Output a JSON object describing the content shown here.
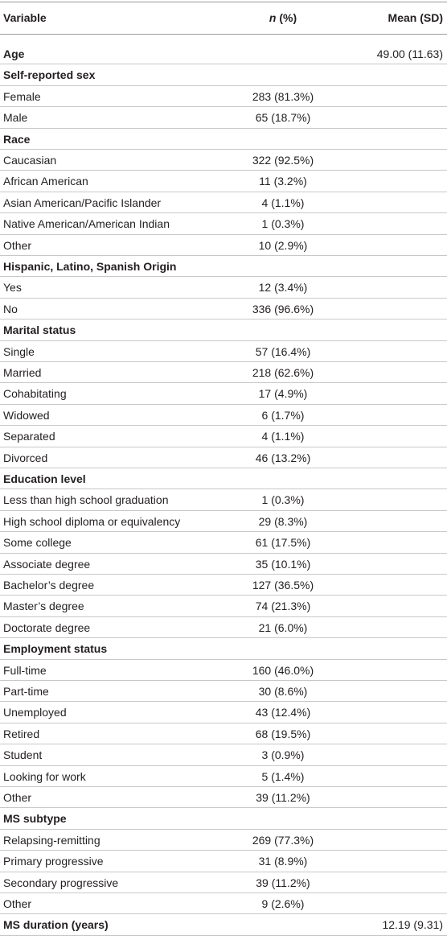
{
  "table": {
    "header": {
      "variable": "Variable",
      "n_italic": "n",
      "n_rest": " (%)",
      "mean": "Mean (SD)"
    },
    "rows": [
      {
        "label": "Age",
        "bold": true,
        "mean": "49.00 (11.63)"
      },
      {
        "label": "Self-reported sex",
        "bold": true
      },
      {
        "label": "Female",
        "n": "283 (81.3%)"
      },
      {
        "label": "Male",
        "n": "65 (18.7%)"
      },
      {
        "label": "Race",
        "bold": true
      },
      {
        "label": "Caucasian",
        "n": "322 (92.5%)"
      },
      {
        "label": "African American",
        "n": "11 (3.2%)"
      },
      {
        "label": "Asian American/Pacific Islander",
        "n": "4 (1.1%)"
      },
      {
        "label": "Native American/American Indian",
        "n": "1 (0.3%)"
      },
      {
        "label": "Other",
        "n": "10 (2.9%)"
      },
      {
        "label": "Hispanic, Latino, Spanish Origin",
        "bold": true
      },
      {
        "label": "Yes",
        "n": "12 (3.4%)"
      },
      {
        "label": "No",
        "n": "336 (96.6%)"
      },
      {
        "label": "Marital status",
        "bold": true
      },
      {
        "label": "Single",
        "n": "57 (16.4%)"
      },
      {
        "label": "Married",
        "n": "218 (62.6%)"
      },
      {
        "label": "Cohabitating",
        "n": "17 (4.9%)"
      },
      {
        "label": "Widowed",
        "n": "6 (1.7%)"
      },
      {
        "label": "Separated",
        "n": "4 (1.1%)"
      },
      {
        "label": "Divorced",
        "n": "46 (13.2%)"
      },
      {
        "label": "Education level",
        "bold": true
      },
      {
        "label": "Less than high school graduation",
        "n": "1 (0.3%)"
      },
      {
        "label": "High school diploma or equivalency",
        "n": "29 (8.3%)"
      },
      {
        "label": "Some college",
        "n": "61 (17.5%)"
      },
      {
        "label": "Associate degree",
        "n": "35 (10.1%)"
      },
      {
        "label": "Bachelor’s degree",
        "n": "127 (36.5%)"
      },
      {
        "label": "Master’s degree",
        "n": "74 (21.3%)"
      },
      {
        "label": "Doctorate degree",
        "n": "21 (6.0%)"
      },
      {
        "label": "Employment status",
        "bold": true
      },
      {
        "label": "Full-time",
        "n": "160 (46.0%)"
      },
      {
        "label": "Part-time",
        "n": "30 (8.6%)"
      },
      {
        "label": "Unemployed",
        "n": "43 (12.4%)"
      },
      {
        "label": "Retired",
        "n": "68 (19.5%)"
      },
      {
        "label": "Student",
        "n": "3 (0.9%)"
      },
      {
        "label": "Looking for work",
        "n": "5 (1.4%)"
      },
      {
        "label": "Other",
        "n": "39 (11.2%)"
      },
      {
        "label": "MS subtype",
        "bold": true
      },
      {
        "label": "Relapsing-remitting",
        "n": "269 (77.3%)"
      },
      {
        "label": "Primary progressive",
        "n": "31 (8.9%)"
      },
      {
        "label": "Secondary progressive",
        "n": "39 (11.2%)"
      },
      {
        "label": "Other",
        "n": "9 (2.6%)"
      },
      {
        "label": "MS duration (years)",
        "bold": true,
        "mean": "12.19 (9.31)"
      }
    ]
  }
}
